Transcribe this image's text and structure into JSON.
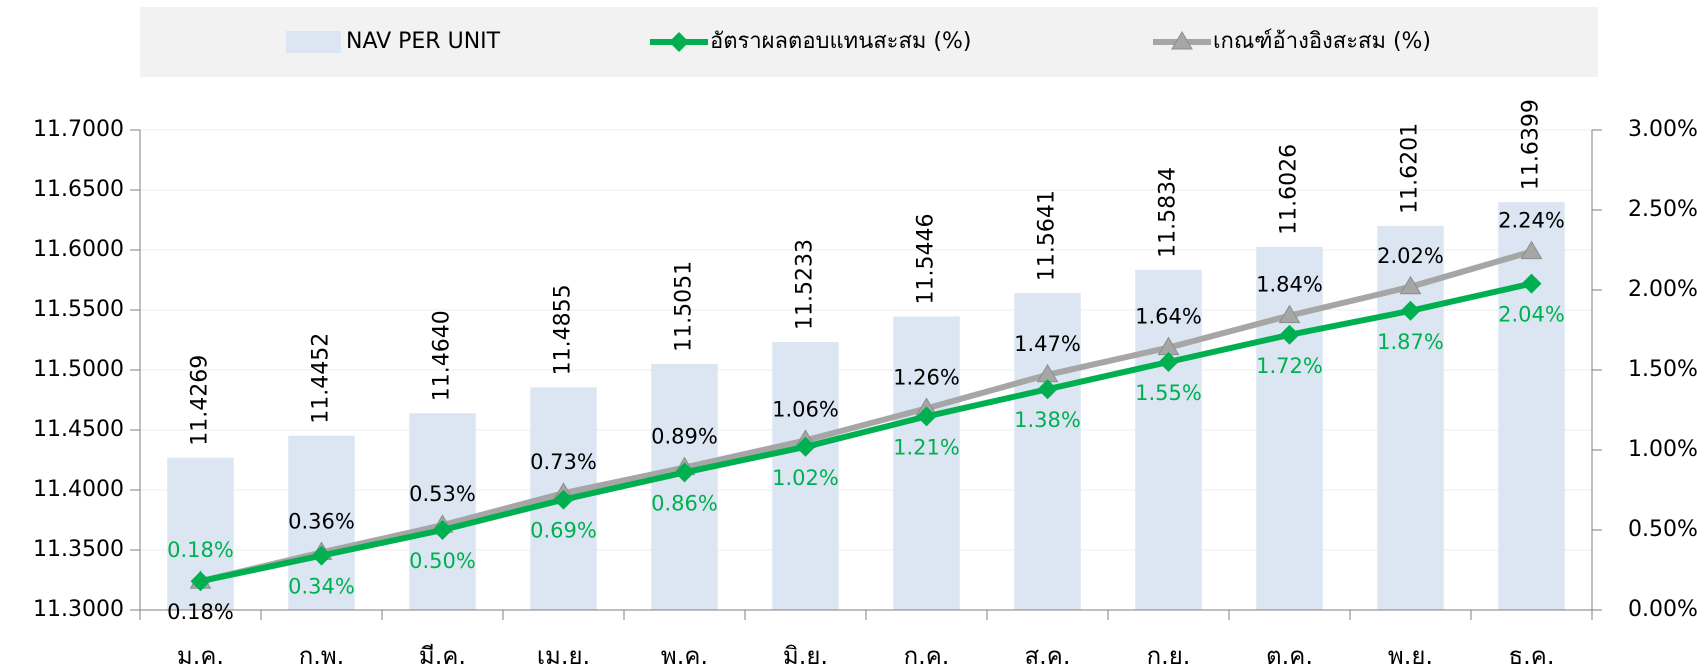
{
  "chart_data": {
    "type": "bar_line",
    "categories": [
      "ม.ค.",
      "ก.พ.",
      "มี.ค.",
      "เม.ย.",
      "พ.ค.",
      "มิ.ย.",
      "ก.ค.",
      "ส.ค.",
      "ก.ย.",
      "ต.ค.",
      "พ.ย.",
      "ธ.ค."
    ],
    "series": [
      {
        "name": "NAV PER UNIT",
        "type": "bar",
        "color": "#dce6f2",
        "values": [
          11.4269,
          11.4452,
          11.464,
          11.4855,
          11.5051,
          11.5233,
          11.5446,
          11.5641,
          11.5834,
          11.6026,
          11.6201,
          11.6399
        ],
        "value_labels": [
          "11.4269",
          "11.4452",
          "11.4640",
          "11.4855",
          "11.5051",
          "11.5233",
          "11.5446",
          "11.5641",
          "11.5834",
          "11.6026",
          "11.6201",
          "11.6399"
        ]
      },
      {
        "name": "อัตราผลตอบแทนสะสม (%)",
        "type": "line",
        "axis": "y2",
        "color": "#00b050",
        "marker": "diamond",
        "values": [
          0.18,
          0.34,
          0.5,
          0.69,
          0.86,
          1.02,
          1.21,
          1.38,
          1.55,
          1.72,
          1.87,
          2.04
        ],
        "value_labels": [
          "0.18%",
          "0.34%",
          "0.50%",
          "0.69%",
          "0.86%",
          "1.02%",
          "1.21%",
          "1.38%",
          "1.55%",
          "1.72%",
          "1.87%",
          "2.04%"
        ]
      },
      {
        "name": "เกณฑ์อ้างอิงสะสม (%)",
        "type": "line",
        "axis": "y2",
        "color": "#a6a6a6",
        "marker": "triangle",
        "values": [
          0.18,
          0.36,
          0.53,
          0.73,
          0.89,
          1.06,
          1.26,
          1.47,
          1.64,
          1.84,
          2.02,
          2.24
        ],
        "value_labels": [
          "0.18%",
          "0.36%",
          "0.53%",
          "0.73%",
          "0.89%",
          "1.06%",
          "1.26%",
          "1.47%",
          "1.64%",
          "1.84%",
          "2.02%",
          "2.24%"
        ]
      }
    ],
    "ylim": [
      11.3,
      11.7
    ],
    "yticks": [
      {
        "value": 11.3,
        "label": "11.3000"
      },
      {
        "value": 11.35,
        "label": "11.3500"
      },
      {
        "value": 11.4,
        "label": "11.4000"
      },
      {
        "value": 11.45,
        "label": "11.4500"
      },
      {
        "value": 11.5,
        "label": "11.5000"
      },
      {
        "value": 11.55,
        "label": "11.5500"
      },
      {
        "value": 11.6,
        "label": "11.6000"
      },
      {
        "value": 11.65,
        "label": "11.6500"
      },
      {
        "value": 11.7,
        "label": "11.7000"
      }
    ],
    "y2lim": [
      0,
      3
    ],
    "y2ticks": [
      {
        "value": 0,
        "label": "0.00%"
      },
      {
        "value": 0.5,
        "label": "0.50%"
      },
      {
        "value": 1,
        "label": "1.00%"
      },
      {
        "value": 1.5,
        "label": "1.50%"
      },
      {
        "value": 2,
        "label": "2.00%"
      },
      {
        "value": 2.5,
        "label": "2.50%"
      },
      {
        "value": 3,
        "label": "3.00%"
      }
    ],
    "grid": true,
    "legend": "top"
  }
}
